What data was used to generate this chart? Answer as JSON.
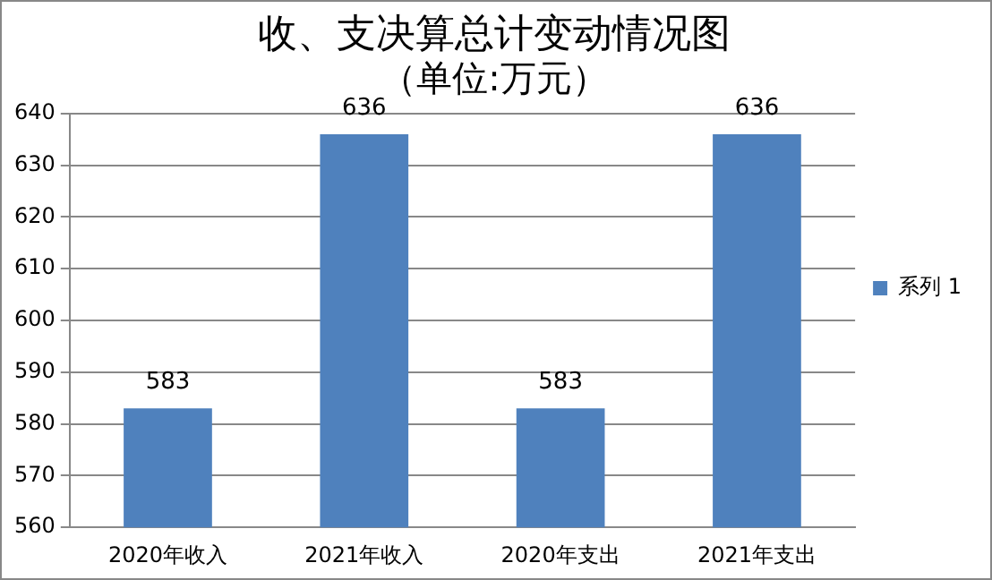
{
  "chart_data": {
    "type": "bar",
    "title": "收、支决算总计变动情况图",
    "subtitle": "（单位:万元）",
    "categories": [
      "2020年收入",
      "2021年收入",
      "2020年支出",
      "2021年支出"
    ],
    "series": [
      {
        "name": "系列 1",
        "color": "#4f81bd",
        "values": [
          583,
          636,
          583,
          636
        ]
      }
    ],
    "ylim": [
      560,
      640
    ],
    "yticks": [
      560,
      570,
      580,
      590,
      600,
      610,
      620,
      630,
      640
    ],
    "grid": "y",
    "legend": "right",
    "data_labels": true
  }
}
